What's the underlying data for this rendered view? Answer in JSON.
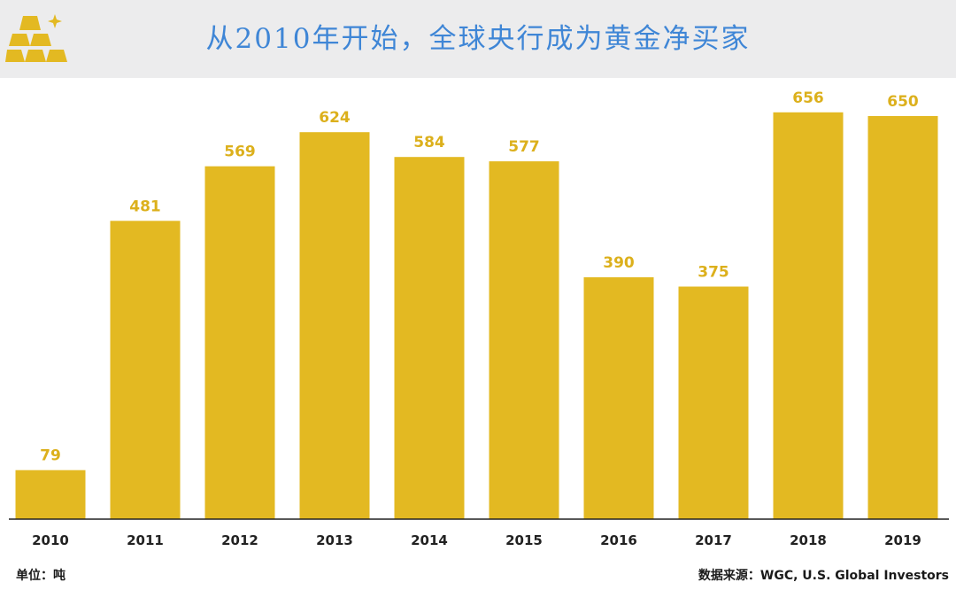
{
  "header": {
    "title": "从2010年开始，全球央行成为黄金净买家",
    "logo_icon": "gold-bars-icon"
  },
  "footer": {
    "unit": "单位：吨",
    "source": "数据来源：WGC, U.S. Global Investors"
  },
  "colors": {
    "bar": "#e3b922",
    "label": "#dcb01c",
    "header_bg": "#ececed",
    "title": "#3f86d6",
    "axis": "#222222"
  },
  "chart_data": {
    "type": "bar",
    "title": "从2010年开始，全球央行成为黄金净买家",
    "categories": [
      "2010",
      "2011",
      "2012",
      "2013",
      "2014",
      "2015",
      "2016",
      "2017",
      "2018",
      "2019"
    ],
    "values": [
      79,
      481,
      569,
      624,
      584,
      577,
      390,
      375,
      656,
      650
    ],
    "unit": "吨",
    "xlabel": "",
    "ylabel": "",
    "ylim": [
      0,
      700
    ],
    "grid": false,
    "legend": "none",
    "data_labels": true
  }
}
